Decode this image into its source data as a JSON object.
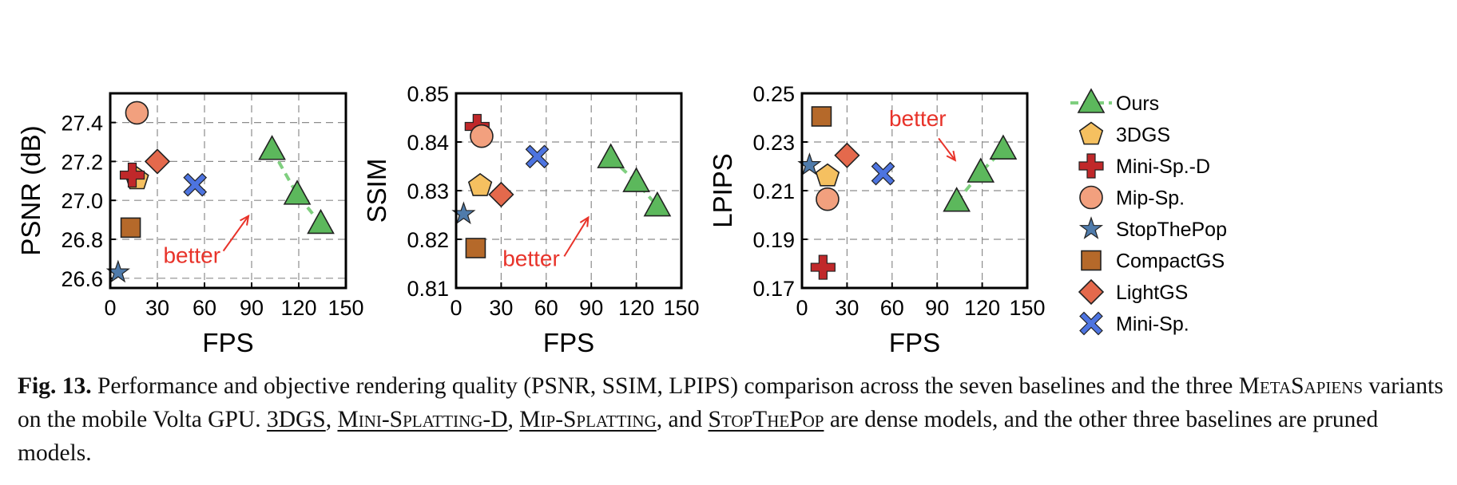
{
  "chart_data": [
    {
      "type": "scatter",
      "xlabel": "FPS",
      "ylabel": "PSNR (dB)",
      "xlim": [
        0,
        150
      ],
      "ylim": [
        26.55,
        27.55
      ],
      "xticks": [
        "0",
        "30",
        "60",
        "90",
        "120",
        "150"
      ],
      "yticks": [
        "26.6",
        "26.8",
        "27.0",
        "27.2",
        "27.4"
      ],
      "ytick_values": [
        26.6,
        26.8,
        27.0,
        27.2,
        27.4
      ],
      "grid": true,
      "annotation": {
        "text": "better",
        "arrow": "up-right",
        "text_at": [
          52,
          26.68
        ],
        "arrow_from": [
          72,
          26.74
        ],
        "arrow_to": [
          88,
          26.92
        ]
      },
      "series": [
        {
          "name": "Ours",
          "points": [
            [
              103,
              27.26
            ],
            [
              119,
              27.03
            ],
            [
              134,
              26.88
            ]
          ]
        },
        {
          "name": "3DGS",
          "points": [
            [
              17,
              27.11
            ]
          ]
        },
        {
          "name": "Mini-Sp.-D",
          "points": [
            [
              14,
              27.13
            ]
          ]
        },
        {
          "name": "Mip-Sp.",
          "points": [
            [
              17,
              27.45
            ]
          ]
        },
        {
          "name": "StopThePop",
          "points": [
            [
              5,
              26.63
            ]
          ]
        },
        {
          "name": "CompactGS",
          "points": [
            [
              13,
              26.86
            ]
          ]
        },
        {
          "name": "LightGS",
          "points": [
            [
              30,
              27.2
            ]
          ]
        },
        {
          "name": "Mini-Sp.",
          "points": [
            [
              54,
              27.08
            ]
          ]
        }
      ]
    },
    {
      "type": "scatter",
      "xlabel": "FPS",
      "ylabel": "SSIM",
      "xlim": [
        0,
        150
      ],
      "ylim": [
        0.81,
        0.85
      ],
      "xticks": [
        "0",
        "30",
        "60",
        "90",
        "120",
        "150"
      ],
      "yticks": [
        "0.81",
        "0.82",
        "0.83",
        "0.84",
        "0.85"
      ],
      "ytick_values": [
        0.81,
        0.82,
        0.83,
        0.84,
        0.85
      ],
      "grid": true,
      "annotation": {
        "text": "better",
        "arrow": "up-right",
        "text_at": [
          50,
          0.8145
        ],
        "arrow_from": [
          72,
          0.8165
        ],
        "arrow_to": [
          88,
          0.8245
        ]
      },
      "series": [
        {
          "name": "Ours",
          "points": [
            [
              103,
              0.8367
            ],
            [
              120,
              0.8318
            ],
            [
              134,
              0.8268
            ]
          ]
        },
        {
          "name": "3DGS",
          "points": [
            [
              16,
              0.831
            ]
          ]
        },
        {
          "name": "Mini-Sp.-D",
          "points": [
            [
              14,
              0.8432
            ]
          ]
        },
        {
          "name": "Mip-Sp.",
          "points": [
            [
              17,
              0.8412
            ]
          ]
        },
        {
          "name": "StopThePop",
          "points": [
            [
              5,
              0.8252
            ]
          ]
        },
        {
          "name": "CompactGS",
          "points": [
            [
              13,
              0.8182
            ]
          ]
        },
        {
          "name": "LightGS",
          "points": [
            [
              30,
              0.8292
            ]
          ]
        },
        {
          "name": "Mini-Sp.",
          "points": [
            [
              54,
              0.837
            ]
          ]
        }
      ]
    },
    {
      "type": "scatter",
      "xlabel": "FPS",
      "ylabel": "LPIPS",
      "xlim": [
        0,
        150
      ],
      "ylim": [
        0.17,
        0.25
      ],
      "xticks": [
        "0",
        "30",
        "60",
        "90",
        "120",
        "150"
      ],
      "yticks": [
        "0.17",
        "0.19",
        "0.21",
        "0.23",
        "0.25"
      ],
      "ytick_values": [
        0.17,
        0.19,
        0.21,
        0.23,
        0.25
      ],
      "grid": true,
      "annotation": {
        "text": "better",
        "arrow": "down-right",
        "text_at": [
          77,
          0.2365
        ],
        "arrow_from": [
          91,
          0.2315
        ],
        "arrow_to": [
          102,
          0.2225
        ]
      },
      "series": [
        {
          "name": "Ours",
          "points": [
            [
              103,
              0.2055
            ],
            [
              119,
              0.2175
            ],
            [
              134,
              0.227
            ]
          ]
        },
        {
          "name": "3DGS",
          "points": [
            [
              17,
              0.216
            ]
          ]
        },
        {
          "name": "Mini-Sp.-D",
          "points": [
            [
              14,
              0.1785
            ]
          ]
        },
        {
          "name": "Mip-Sp.",
          "points": [
            [
              17,
              0.2065
            ]
          ]
        },
        {
          "name": "StopThePop",
          "points": [
            [
              5,
              0.2205
            ]
          ]
        },
        {
          "name": "CompactGS",
          "points": [
            [
              13,
              0.2405
            ]
          ]
        },
        {
          "name": "LightGS",
          "points": [
            [
              30,
              0.2245
            ]
          ]
        },
        {
          "name": "Mini-Sp.",
          "points": [
            [
              54,
              0.217
            ]
          ]
        }
      ]
    }
  ],
  "legend": {
    "placement": "right",
    "entries": [
      {
        "label": "Ours",
        "marker": "triangle",
        "color": "#5cb85c",
        "line_color": "#7fcf7f"
      },
      {
        "label": "3DGS",
        "marker": "pentagon",
        "color": "#f5c060"
      },
      {
        "label": "Mini-Sp.-D",
        "marker": "plus",
        "color": "#c0282a"
      },
      {
        "label": "Mip-Sp.",
        "marker": "circle",
        "color": "#f2a07e"
      },
      {
        "label": "StopThePop",
        "marker": "star",
        "color": "#4f7bab"
      },
      {
        "label": "CompactGS",
        "marker": "square",
        "color": "#b5692a"
      },
      {
        "label": "LightGS",
        "marker": "diamond",
        "color": "#e4694c"
      },
      {
        "label": "Mini-Sp.",
        "marker": "x",
        "color": "#4d74e0"
      }
    ]
  },
  "colors": {
    "annotation": "#e8332a",
    "grid": "#8c8c8c"
  },
  "caption": {
    "fig_label": "Fig. 13.",
    "text_1": " Performance and objective rendering quality (PSNR, SSIM, LPIPS) comparison across the seven baselines and the three ",
    "metasapiens": "MetaSapiens",
    "text_2": " variants on the mobile Volta GPU.  ",
    "ref_3dgs": "3DGS",
    "sep_1": ", ",
    "ref_minisplatting_d": "Mini-Splatting-D",
    "sep_2": ", ",
    "ref_mipsplatting": "Mip-Splatting",
    "sep_3": ", and ",
    "ref_stopthepop": "StopThePop",
    "text_3": " are dense models, and the other three baselines are pruned models."
  }
}
